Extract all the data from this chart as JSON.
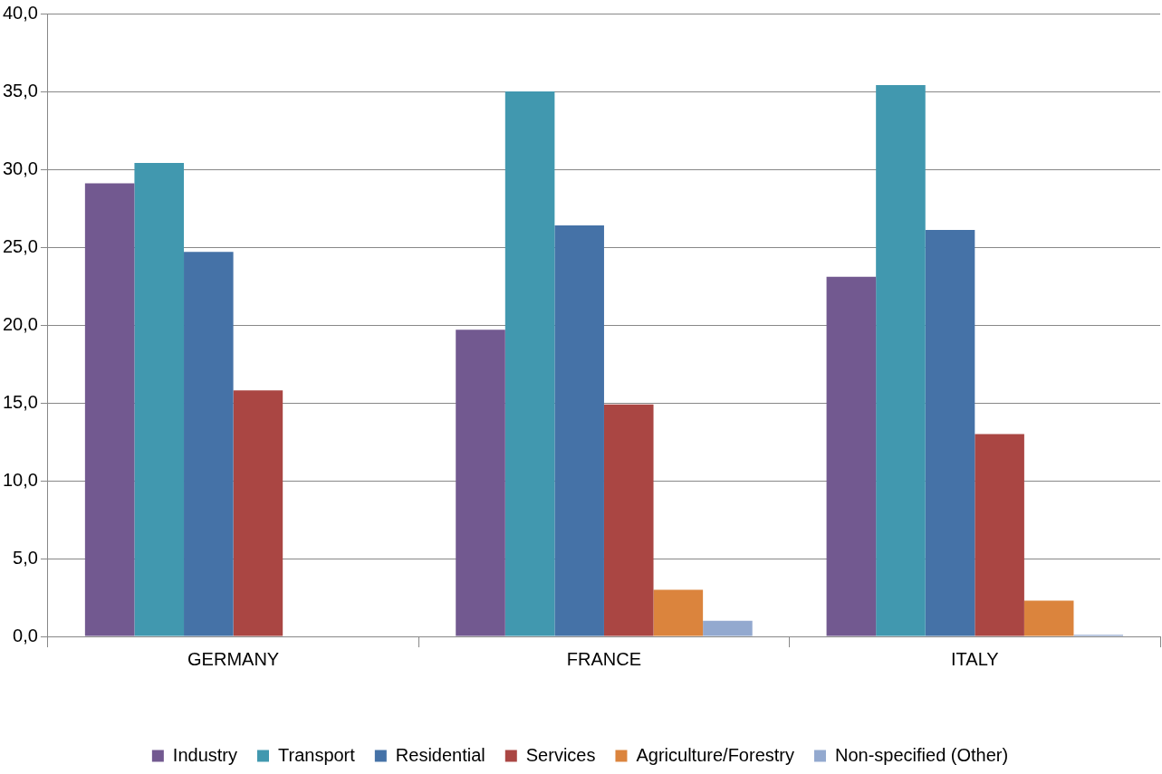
{
  "chart_data": {
    "type": "bar",
    "categories": [
      "GERMANY",
      "FRANCE",
      "ITALY"
    ],
    "series": [
      {
        "name": "Industry",
        "color": "#725990",
        "values": [
          29.1,
          19.7,
          23.1
        ]
      },
      {
        "name": "Transport",
        "color": "#4198af",
        "values": [
          30.4,
          35.0,
          35.4
        ]
      },
      {
        "name": "Residential",
        "color": "#4572a7",
        "values": [
          24.7,
          26.4,
          26.1
        ]
      },
      {
        "name": "Services",
        "color": "#aa4643",
        "values": [
          15.8,
          14.9,
          13.0
        ]
      },
      {
        "name": "Agriculture/Forestry",
        "color": "#db843d",
        "values": [
          null,
          3.0,
          2.3
        ]
      },
      {
        "name": "Non-specified (Other)",
        "color": "#93a9cf",
        "values": [
          null,
          1.0,
          0.1
        ]
      }
    ],
    "ylim": [
      0,
      40
    ],
    "yticks": [
      {
        "value": 0,
        "label": "0,0"
      },
      {
        "value": 5,
        "label": "5,0"
      },
      {
        "value": 10,
        "label": "10,0"
      },
      {
        "value": 15,
        "label": "15,0"
      },
      {
        "value": 20,
        "label": "20,0"
      },
      {
        "value": 25,
        "label": "25,0"
      },
      {
        "value": 30,
        "label": "30,0"
      },
      {
        "value": 35,
        "label": "35,0"
      },
      {
        "value": 40,
        "label": "40,0"
      }
    ],
    "grid": "y",
    "legend": "bottom"
  }
}
